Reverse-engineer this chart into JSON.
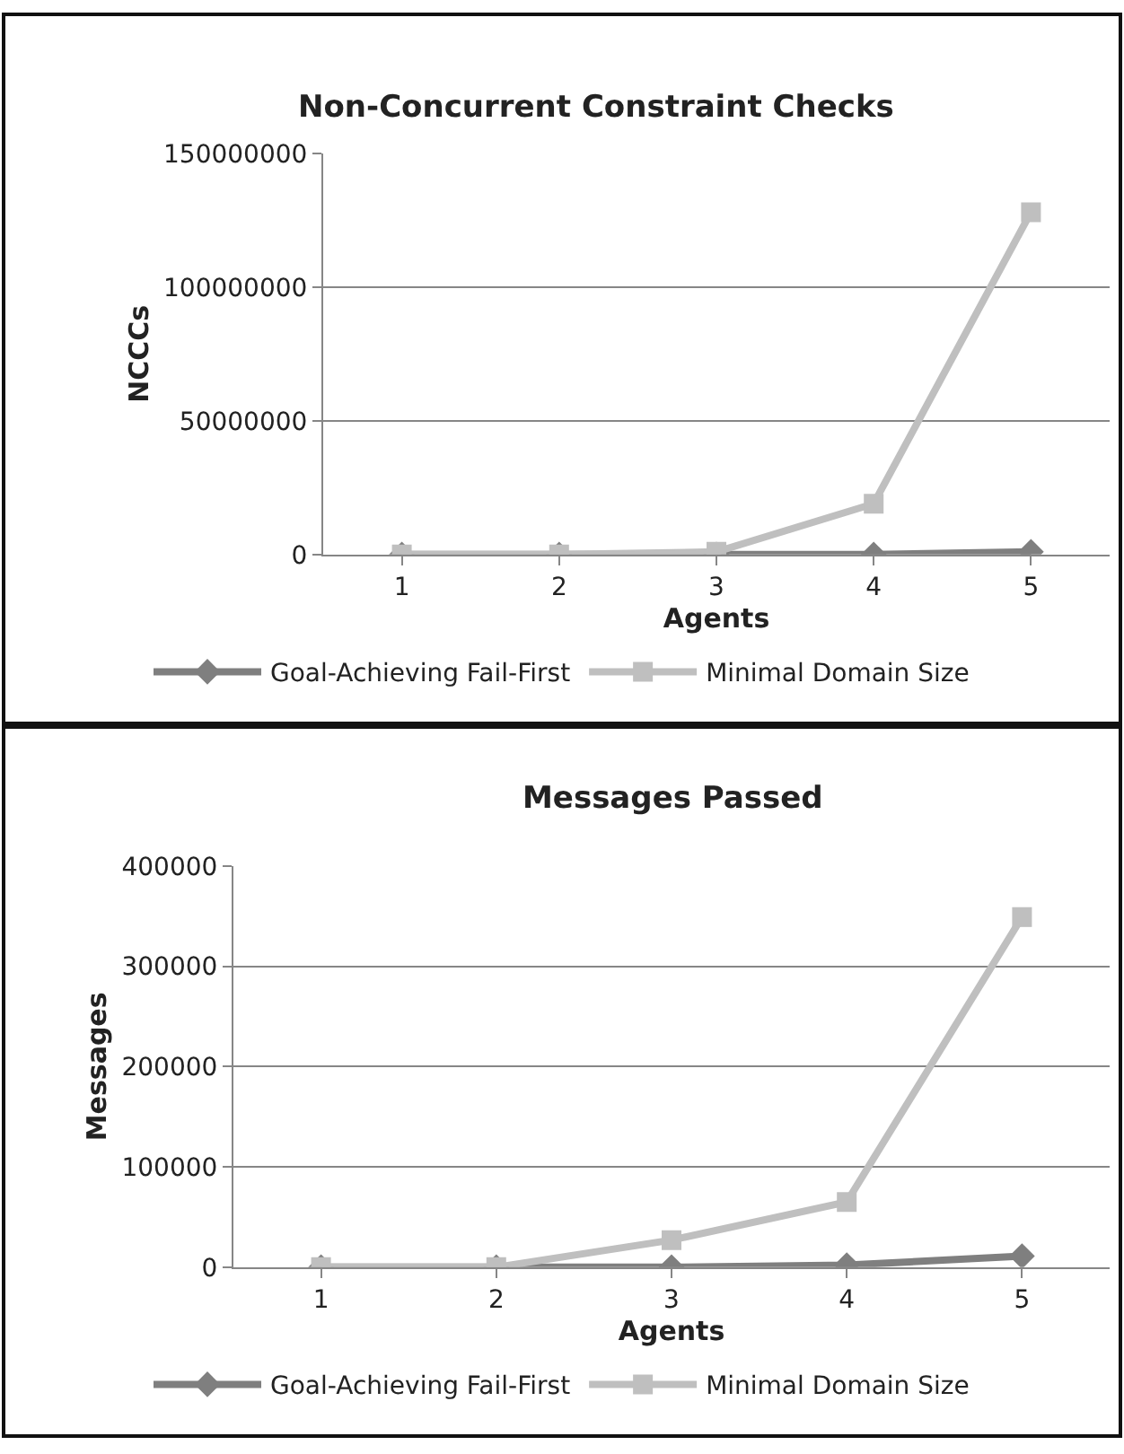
{
  "chart_data": [
    {
      "type": "line",
      "title": "Non-Concurrent Constraint Checks",
      "xlabel": "Agents",
      "ylabel": "NCCCs",
      "categories": [
        "1",
        "2",
        "3",
        "4",
        "5"
      ],
      "ylim": [
        0,
        150000000
      ],
      "yticks": [
        0,
        50000000,
        100000000,
        150000000
      ],
      "grid": "y",
      "legend": "bottom",
      "series": [
        {
          "name": "Goal-Achieving Fail-First",
          "color": "#7f7f7f",
          "marker": "diamond",
          "values": [
            0,
            0,
            0,
            0,
            1000000
          ]
        },
        {
          "name": "Minimal Domain Size",
          "color": "#bfbfbf",
          "marker": "square",
          "values": [
            0,
            0,
            1000000,
            19000000,
            128000000
          ]
        }
      ]
    },
    {
      "type": "line",
      "title": "Messages Passed",
      "xlabel": "Agents",
      "ylabel": "Messages",
      "categories": [
        "1",
        "2",
        "3",
        "4",
        "5"
      ],
      "ylim": [
        0,
        400000
      ],
      "yticks": [
        0,
        100000,
        200000,
        300000,
        400000
      ],
      "grid": "y",
      "legend": "bottom",
      "series": [
        {
          "name": "Goal-Achieving Fail-First",
          "color": "#7f7f7f",
          "marker": "diamond",
          "values": [
            0,
            0,
            0,
            2000,
            11000
          ]
        },
        {
          "name": "Minimal Domain Size",
          "color": "#bfbfbf",
          "marker": "square",
          "values": [
            0,
            0,
            27000,
            65000,
            349000
          ]
        }
      ]
    }
  ]
}
